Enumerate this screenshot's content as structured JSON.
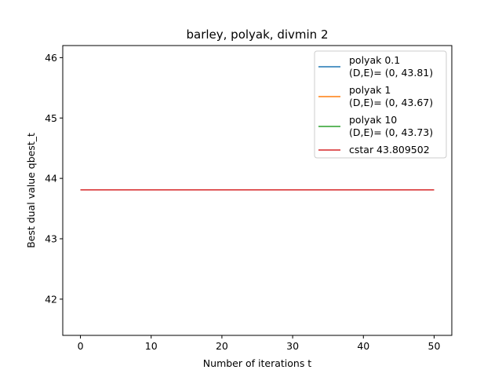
{
  "chart_data": {
    "type": "line",
    "title": "barley, polyak, divmin 2",
    "xlabel": "Number of iterations t",
    "ylabel": "Best dual value qbest_t",
    "xlim": [
      -2.5,
      52.5
    ],
    "ylim": [
      41.4,
      46.2
    ],
    "xticks": [
      0,
      10,
      20,
      30,
      40,
      50
    ],
    "yticks": [
      42,
      43,
      44,
      45,
      46
    ],
    "grid": false,
    "legend_position": "top-right",
    "series": [
      {
        "name": "polyak 0.1",
        "label_line2": "(D,E)= (0, 43.81)",
        "color": "#1f77b4",
        "x": [
          0,
          50
        ],
        "y": [
          43.81,
          43.81
        ]
      },
      {
        "name": "polyak 1",
        "label_line2": "(D,E)= (0, 43.67)",
        "color": "#ff7f0e",
        "x": [
          0,
          50
        ],
        "y": [
          43.81,
          43.81
        ]
      },
      {
        "name": "polyak 10",
        "label_line2": "(D,E)= (0, 43.73)",
        "color": "#2ca02c",
        "x": [
          0,
          50
        ],
        "y": [
          43.81,
          43.81
        ]
      },
      {
        "name": "cstar 43.809502",
        "label_line2": "",
        "color": "#d62728",
        "x": [
          0,
          50
        ],
        "y": [
          43.809502,
          43.809502
        ]
      }
    ]
  }
}
